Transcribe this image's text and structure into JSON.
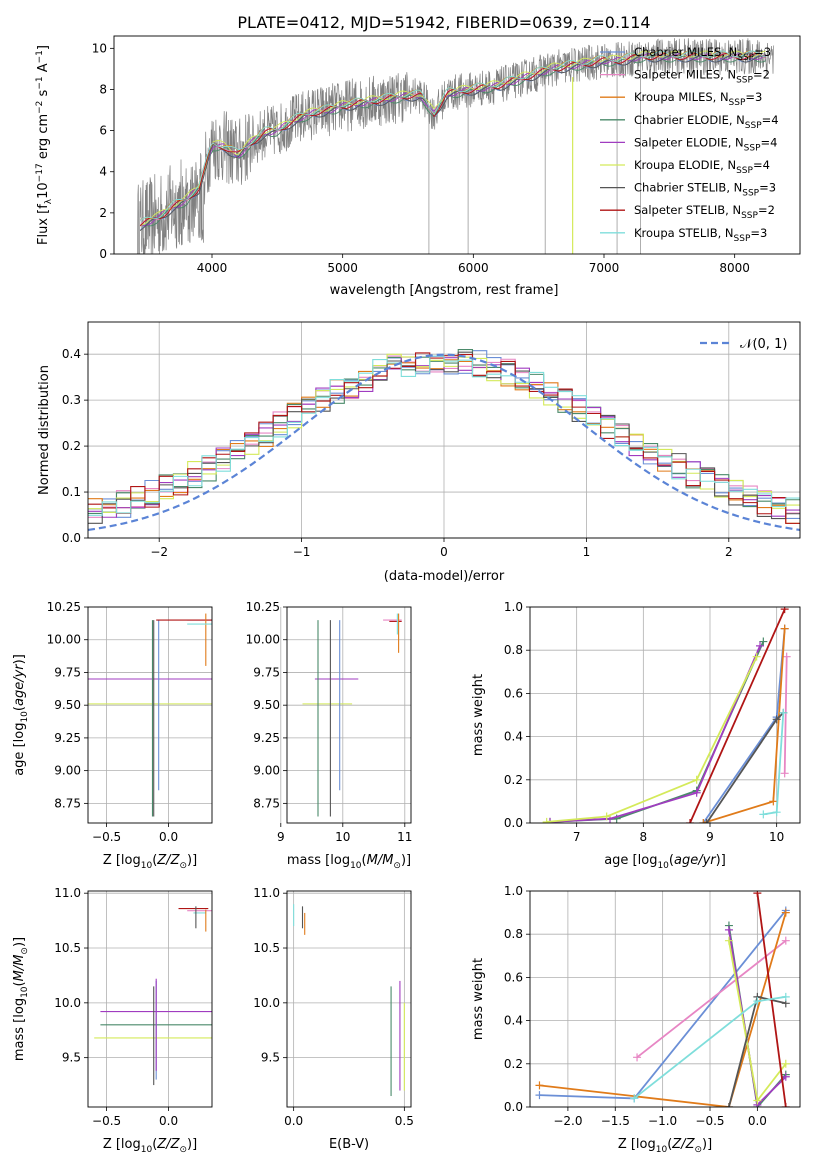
{
  "figure": {
    "title": "PLATE=0412, MJD=51942, FIBERID=0639, z=0.114"
  },
  "legend_models": [
    {
      "label": "Chabrier MILES, N",
      "sub": "SSP",
      "suffix": "=3",
      "color": "#6b8fd6"
    },
    {
      "label": "Salpeter MILES, N",
      "sub": "SSP",
      "suffix": "=2",
      "color": "#e786c4"
    },
    {
      "label": "Kroupa MILES, N",
      "sub": "SSP",
      "suffix": "=3",
      "color": "#e07b1a"
    },
    {
      "label": "Chabrier ELODIE, N",
      "sub": "SSP",
      "suffix": "=4",
      "color": "#4a8a6a"
    },
    {
      "label": "Salpeter ELODIE, N",
      "sub": "SSP",
      "suffix": "=4",
      "color": "#a03cc0"
    },
    {
      "label": "Kroupa ELODIE, N",
      "sub": "SSP",
      "suffix": "=4",
      "color": "#d4ea5a"
    },
    {
      "label": "Chabrier STELIB, N",
      "sub": "SSP",
      "suffix": "=3",
      "color": "#555555"
    },
    {
      "label": "Salpeter STELIB, N",
      "sub": "SSP",
      "suffix": "=2",
      "color": "#b01515"
    },
    {
      "label": "Kroupa STELIB, N",
      "sub": "SSP",
      "suffix": "=3",
      "color": "#7fdedb"
    }
  ],
  "chart_data": [
    {
      "type": "line",
      "id": "spectrum",
      "xlabel": "wavelength [Angstrom, rest frame]",
      "ylabel": "Flux [fλ10⁻¹⁷ erg cm⁻² s⁻¹ A⁻¹]",
      "xlim": [
        3250,
        8500
      ],
      "ylim": [
        0,
        10.6
      ],
      "xticks": [
        4000,
        5000,
        6000,
        7000,
        8000
      ],
      "yticks": [
        0,
        2,
        4,
        6,
        8,
        10
      ],
      "continuum": {
        "x": [
          3450,
          3600,
          3700,
          3800,
          3900,
          4000,
          4100,
          4200,
          4300,
          4400,
          4500,
          4600,
          4700,
          4800,
          4900,
          5000,
          5100,
          5200,
          5300,
          5400,
          5500,
          5600,
          5700,
          5800,
          5900,
          6000,
          6100,
          6200,
          6300,
          6400,
          6500,
          6600,
          6700,
          6800,
          6900,
          7000,
          7100,
          7200,
          7300
        ],
        "y": [
          1.4,
          1.8,
          2.3,
          2.6,
          3.2,
          5.3,
          5.2,
          4.8,
          5.4,
          5.9,
          6.0,
          6.4,
          6.7,
          6.9,
          7.0,
          7.2,
          7.3,
          7.4,
          7.5,
          7.6,
          7.7,
          7.7,
          6.8,
          7.8,
          7.9,
          8.0,
          8.1,
          8.2,
          8.4,
          8.6,
          8.8,
          9.0,
          9.1,
          9.2,
          9.3,
          9.4,
          9.4,
          9.5,
          9.6
        ]
      },
      "data_extent": [
        3430,
        8300
      ]
    },
    {
      "type": "histogram",
      "id": "residuals",
      "xlabel": "(data-model)/error",
      "ylabel": "Normed distribution",
      "xlim": [
        -2.5,
        2.5
      ],
      "ylim": [
        0,
        0.47
      ],
      "xticks": [
        -2,
        -1,
        0,
        1,
        2
      ],
      "yticks": [
        0.0,
        0.1,
        0.2,
        0.3,
        0.4
      ],
      "bin_width": 0.1,
      "gaussian_label": "N(0, 1)",
      "gaussian_color": "#5b84d6"
    },
    {
      "type": "scatter",
      "id": "age_vs_Z",
      "xlabel": "Z [log10(Z/Z⊙)]",
      "ylabel": "age  [log10(age/yr)]",
      "xlim": [
        -0.65,
        0.35
      ],
      "ylim": [
        8.6,
        10.25
      ],
      "xticks": [
        -0.5,
        0.0
      ],
      "yticks": [
        8.75,
        9.0,
        9.25,
        9.5,
        9.75,
        10.0,
        10.25
      ]
    },
    {
      "type": "scatter",
      "id": "age_vs_mass",
      "xlabel": "mass [log10(M/M⊙)]",
      "xlim": [
        9.1,
        11.1
      ],
      "ylim": [
        8.6,
        10.25
      ],
      "xticks": [
        9,
        10,
        11
      ],
      "yticks": [
        8.75,
        9.0,
        9.25,
        9.5,
        9.75,
        10.0,
        10.25
      ]
    },
    {
      "type": "line",
      "id": "weight_vs_age",
      "xlabel": "age  [log10(age/yr)]",
      "ylabel": "mass weight",
      "xlim": [
        6.3,
        10.35
      ],
      "ylim": [
        0,
        1
      ],
      "xticks": [
        7,
        8,
        9,
        10
      ],
      "yticks": [
        0.0,
        0.2,
        0.4,
        0.6,
        0.8,
        1.0
      ],
      "series": [
        {
          "color": "#6b8fd6",
          "x": [
            8.9,
            10.0,
            10.12
          ],
          "y": [
            0.0,
            0.49,
            0.9
          ]
        },
        {
          "color": "#e786c4",
          "x": [
            10.12,
            10.15
          ],
          "y": [
            0.23,
            0.77
          ]
        },
        {
          "color": "#e07b1a",
          "x": [
            8.9,
            9.95,
            10.12
          ],
          "y": [
            0.0,
            0.1,
            0.9
          ]
        },
        {
          "color": "#4a8a6a",
          "x": [
            6.6,
            7.6,
            8.8,
            9.8
          ],
          "y": [
            0.005,
            0.02,
            0.15,
            0.84
          ]
        },
        {
          "color": "#a03cc0",
          "x": [
            6.6,
            7.5,
            8.8,
            9.75
          ],
          "y": [
            0.005,
            0.02,
            0.14,
            0.82
          ]
        },
        {
          "color": "#d4ea5a",
          "x": [
            6.55,
            7.45,
            8.8,
            9.7
          ],
          "y": [
            0.005,
            0.03,
            0.2,
            0.77
          ]
        },
        {
          "color": "#555555",
          "x": [
            8.95,
            10.0,
            10.1
          ],
          "y": [
            0.0,
            0.48,
            0.51
          ]
        },
        {
          "color": "#b01515",
          "x": [
            8.7,
            10.12
          ],
          "y": [
            0.0,
            0.99
          ]
        },
        {
          "color": "#7fdedb",
          "x": [
            9.8,
            10.0,
            10.1
          ],
          "y": [
            0.04,
            0.05,
            0.51
          ]
        }
      ]
    },
    {
      "type": "scatter",
      "id": "mass_vs_Z",
      "xlabel": "Z [log10(Z/Z⊙)]",
      "ylabel": "mass [log10(M/M⊙)]",
      "xlim": [
        -0.65,
        0.35
      ],
      "ylim": [
        9.05,
        11.02
      ],
      "xticks": [
        -0.5,
        0.0
      ],
      "yticks": [
        9.5,
        10.0,
        10.5,
        11.0
      ]
    },
    {
      "type": "scatter",
      "id": "mass_vs_EBV",
      "xlabel": "E(B-V)",
      "xlim": [
        -0.03,
        0.53
      ],
      "ylim": [
        9.05,
        11.02
      ],
      "xticks": [
        0.0,
        0.5
      ],
      "yticks": [
        9.5,
        10.0,
        10.5,
        11.0
      ]
    },
    {
      "type": "line",
      "id": "weight_vs_Z",
      "xlabel": "Z [log10(Z/Z⊙)]",
      "ylabel": "mass weight",
      "xlim": [
        -2.4,
        0.45
      ],
      "ylim": [
        0,
        1
      ],
      "xticks": [
        -2.0,
        -1.5,
        -1.0,
        -0.5,
        0.0
      ],
      "yticks": [
        0.0,
        0.2,
        0.4,
        0.6,
        0.8,
        1.0
      ],
      "series": [
        {
          "color": "#6b8fd6",
          "x": [
            -2.3,
            -1.3,
            0.3
          ],
          "y": [
            0.055,
            0.04,
            0.91
          ]
        },
        {
          "color": "#e786c4",
          "x": [
            -1.27,
            0.3
          ],
          "y": [
            0.23,
            0.77
          ]
        },
        {
          "color": "#e07b1a",
          "x": [
            -2.3,
            -0.3,
            0.3
          ],
          "y": [
            0.1,
            0.0,
            0.9
          ]
        },
        {
          "color": "#4a8a6a",
          "x": [
            -0.3,
            0.0,
            0.3
          ],
          "y": [
            0.84,
            0.0,
            0.15
          ]
        },
        {
          "color": "#a03cc0",
          "x": [
            -0.3,
            0.0,
            0.3
          ],
          "y": [
            0.82,
            0.01,
            0.14
          ]
        },
        {
          "color": "#d4ea5a",
          "x": [
            -0.3,
            0.0,
            0.3
          ],
          "y": [
            0.77,
            0.03,
            0.2
          ]
        },
        {
          "color": "#555555",
          "x": [
            -0.3,
            0.0,
            0.3
          ],
          "y": [
            0.0,
            0.51,
            0.48
          ]
        },
        {
          "color": "#b01515",
          "x": [
            0.0,
            0.3
          ],
          "y": [
            0.99,
            0.0
          ]
        },
        {
          "color": "#7fdedb",
          "x": [
            -1.3,
            0.0,
            0.3
          ],
          "y": [
            0.04,
            0.49,
            0.51
          ]
        }
      ]
    }
  ]
}
